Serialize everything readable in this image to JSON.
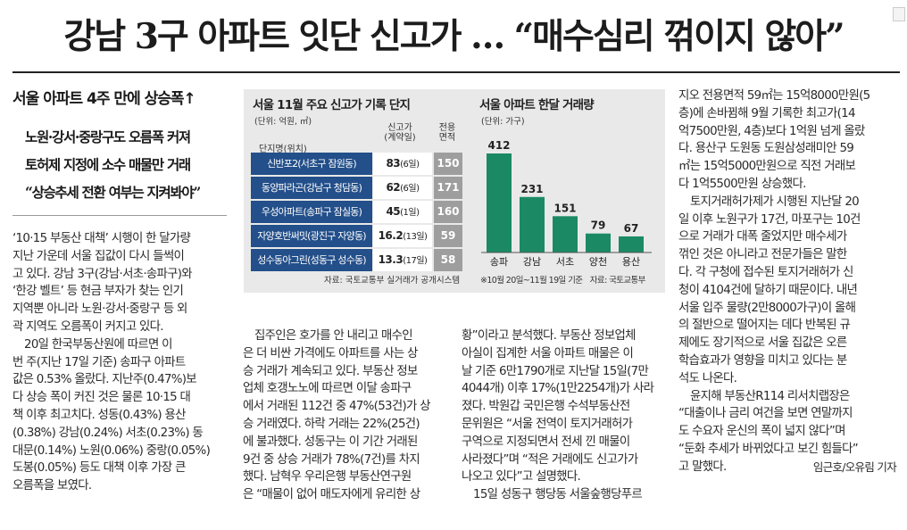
{
  "headline": "강남 3구 아파트 잇단 신고가 … “매수심리 꺾이지 않아”",
  "subheads": {
    "main": "서울 아파트 4주 만에 상승폭↑",
    "lines": [
      "노원·강서·중랑구도 오름폭 커져",
      "토허제 지정에 소수 매물만 거래",
      "“상승추세 전환 여부는 지켜봐야”"
    ]
  },
  "columns": {
    "col1": [
      "‘10·15 부동산 대책’ 시행이 한 달가량",
      "지난 가운데 서울 집값이 다시 들썩이",
      "고 있다. 강남 3구(강남·서초·송파구)와",
      "‘한강 벨트’ 등 현금 부자가 찾는 인기",
      "지역뿐 아니라 노원·강서·중랑구 등 외",
      "곽 지역도 오름폭이 커지고 있다.",
      "20일 한국부동산원에 따르면 이",
      "번 주(지난 17일 기준) 송파구 아파트",
      "값은 0.53% 올랐다. 지난주(0.47%)보",
      "다 상승 폭이 커진 것은 물론 10·15 대",
      "책 이후 최고치다. 성동(0.43%) 용산",
      "(0.38%) 강남(0.24%) 서초(0.23%) 동",
      "대문(0.14%) 노원(0.06%) 중랑(0.05%)",
      "도봉(0.05%) 등도 대책 이후 가장 큰",
      "오름폭을 보였다."
    ],
    "col2": [
      "집주인은 호가를 안 내리고 매수인",
      "은 더 비싼 가격에도 아파트를 사는 상",
      "승 거래가 계속되고 있다. 부동산 정보",
      "업체 호갱노노에 따르면 이달 송파구",
      "에서 거래된 112건 중 47%(53건)가 상",
      "승 거래였다. 하락 거래는 22%(25건)",
      "에 불과했다. 성동구는 이 기간 거래된",
      "9건 중 상승 거래가 78%(7건)를 차지",
      "했다. 남혁우 우리은행 부동산연구원",
      "은 “매물이 없어 매도자에게 유리한 상"
    ],
    "col3": [
      "황”이라고 분석했다. 부동산 정보업체",
      "아실이 집계한 서울 아파트 매물은 이",
      "날 기준 6만1790개로 지난달 15일(7만",
      "4044개) 이후 17%(1만2254개)가 사라",
      "졌다. 박원갑 국민은행 수석부동산전",
      "문위원은 “서울 전역이 토지거래허가",
      "구역으로 지정되면서 전세 낀 매물이",
      "사라졌다”며 “적은 거래에도 신고가가",
      "나오고 있다”고 설명했다.",
      "15일 성동구 행당동 서울숲행당푸르"
    ],
    "col4": [
      "지오 전용면적 59㎡는 15억8000만원(5",
      "층)에 손바뀜해 9월 기록한 최고가(14",
      "억7500만원, 4층)보다 1억원 넘게 올랐",
      "다. 용산구 도원동 도원삼성래미안 59",
      "㎡는 15억5000만원으로 직전 거래보",
      "다 1억5500만원 상승했다.",
      "토지거래허가제가 시행된 지난달 20",
      "일 이후 노원구가 17건, 마포구는 10건",
      "으로 거래가 대폭 줄었지만 매수세가",
      "꺾인 것은 아니라고 전문가들은 말한",
      "다. 각 구청에 접수된 토지거래허가 신",
      "청이 4104건에 달하기 때문이다. 내년",
      "서울 입주 물량(2만8000가구)이 올해",
      "의 절반으로 떨어지는 데다 반복된 규",
      "제에도 장기적으로 서울 집값은 오른",
      "학습효과가 영향을 미치고 있다는 분",
      "석도 나온다.",
      "윤지해 부동산R114 리서치랩장은",
      "“대출이나 금리 여건을 보면 연말까지",
      "도 수요자 운신의 폭이 넓지 않다”며",
      "“둔화 추세가 바뀌었다고 보긴 힘들다”",
      "고 말했다."
    ],
    "byline": "임근호/오유림 기자"
  },
  "table": {
    "title": "서울 11월 주요 신고가 기록 단지",
    "unit": "(단위: 억원, ㎡)",
    "header_name": "단지명(위치)",
    "header_price": "신고가\n(계약일)",
    "header_area": "전용\n면적",
    "rows": [
      {
        "name": "신반포2(서초구 잠원동)",
        "price": "83",
        "date": "(6일)",
        "area": "150"
      },
      {
        "name": "동양파라곤(강남구 청담동)",
        "price": "62",
        "date": "(6일)",
        "area": "171"
      },
      {
        "name": "우성아파트(송파구 잠실동)",
        "price": "45",
        "date": "(1일)",
        "area": "160"
      },
      {
        "name": "자양호반써밋(광진구 자양동)",
        "price": "16.2",
        "date": "(13일)",
        "area": "59"
      },
      {
        "name": "성수동아그린(성동구 성수동)",
        "price": "13.3",
        "date": "(17일)",
        "area": "58"
      }
    ],
    "source": "자료: 국토교통부 실거래가 공개시스템"
  },
  "chart_title": "서울 아파트 한달 거래량",
  "chart_unit": "(단위: 가구)",
  "chart_note": "※10월 20일~11월 19일 기준",
  "chart_source": "자료: 국토교통부",
  "chart_data": {
    "type": "bar",
    "title": "서울 아파트 한달 거래량",
    "ylabel": "(단위: 가구)",
    "categories": [
      "송파",
      "강남",
      "서초",
      "양천",
      "용산"
    ],
    "values": [
      412,
      231,
      151,
      79,
      67
    ],
    "ylim": [
      0,
      412
    ],
    "grid": false,
    "bar_color": "#1b8a64"
  }
}
